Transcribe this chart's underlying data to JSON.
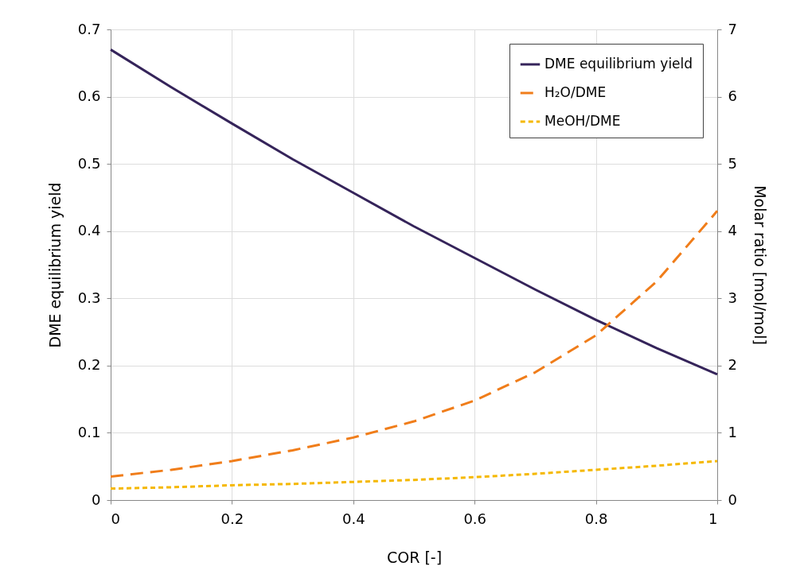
{
  "chart_data": {
    "type": "line",
    "xlabel": "COR [-]",
    "ylabel": "DME equilibrium yield",
    "y2label": "Molar ratio [mol/mol]",
    "x": [
      0,
      0.1,
      0.2,
      0.3,
      0.4,
      0.5,
      0.6,
      0.7,
      0.8,
      0.9,
      1
    ],
    "series": [
      {
        "name": "DME equilibrium yield",
        "color": "#35245a",
        "line_style": "solid",
        "values": [
          0.67,
          0.614,
          0.56,
          0.507,
          0.457,
          0.407,
          0.36,
          0.313,
          0.268,
          0.226,
          0.187
        ]
      },
      {
        "name": "H₂O/DME",
        "color": "#f07d1a",
        "line_style": "dashed",
        "axis": "y2",
        "values": [
          0.35,
          0.45,
          0.58,
          0.74,
          0.93,
          1.17,
          1.48,
          1.9,
          2.45,
          3.25,
          4.3
        ]
      },
      {
        "name": "MeOH/DME",
        "color": "#f5b800",
        "line_style": "dotted",
        "axis": "y2",
        "values": [
          0.17,
          0.19,
          0.22,
          0.24,
          0.27,
          0.3,
          0.34,
          0.39,
          0.45,
          0.51,
          0.58
        ]
      }
    ],
    "xlim": [
      0,
      1
    ],
    "xticks": [
      0,
      0.2,
      0.4,
      0.6,
      0.8,
      1
    ],
    "ylim": [
      0,
      0.7
    ],
    "yticks": [
      0,
      0.1,
      0.2,
      0.3,
      0.4,
      0.5,
      0.6,
      0.7
    ],
    "y2lim": [
      0,
      7
    ],
    "y2ticks": [
      0,
      1,
      2,
      3,
      4,
      5,
      6,
      7
    ],
    "grid": true,
    "legend": "top right",
    "marker": "none"
  }
}
